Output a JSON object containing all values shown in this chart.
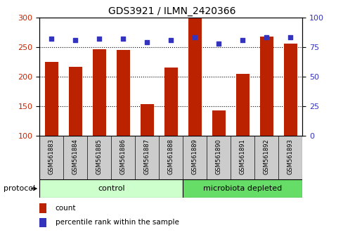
{
  "title": "GDS3921 / ILMN_2420366",
  "samples": [
    "GSM561883",
    "GSM561884",
    "GSM561885",
    "GSM561886",
    "GSM561887",
    "GSM561888",
    "GSM561889",
    "GSM561890",
    "GSM561891",
    "GSM561892",
    "GSM561893"
  ],
  "counts": [
    225,
    217,
    246,
    245,
    153,
    215,
    298,
    143,
    204,
    268,
    256
  ],
  "percentile_ranks": [
    82,
    81,
    82,
    82,
    79,
    81,
    83,
    78,
    81,
    83,
    83
  ],
  "ylim_left": [
    100,
    300
  ],
  "ylim_right": [
    0,
    100
  ],
  "yticks_left": [
    100,
    150,
    200,
    250,
    300
  ],
  "yticks_right": [
    0,
    25,
    50,
    75,
    100
  ],
  "bar_color": "#BB2200",
  "dot_color": "#3333BB",
  "bar_bottom": 100,
  "control_samples": 6,
  "microbiota_samples": 5,
  "control_label": "control",
  "microbiota_label": "microbiota depleted",
  "protocol_label": "protocol",
  "legend_count": "count",
  "legend_percentile": "percentile rank within the sample",
  "control_color": "#CCFFCC",
  "microbiota_color": "#66DD66",
  "grid_color": "black",
  "ylabel_left_color": "#CC2200",
  "ylabel_right_color": "#3333BB",
  "tick_label_area_color": "#CCCCCC",
  "bg_color": "#FFFFFF"
}
